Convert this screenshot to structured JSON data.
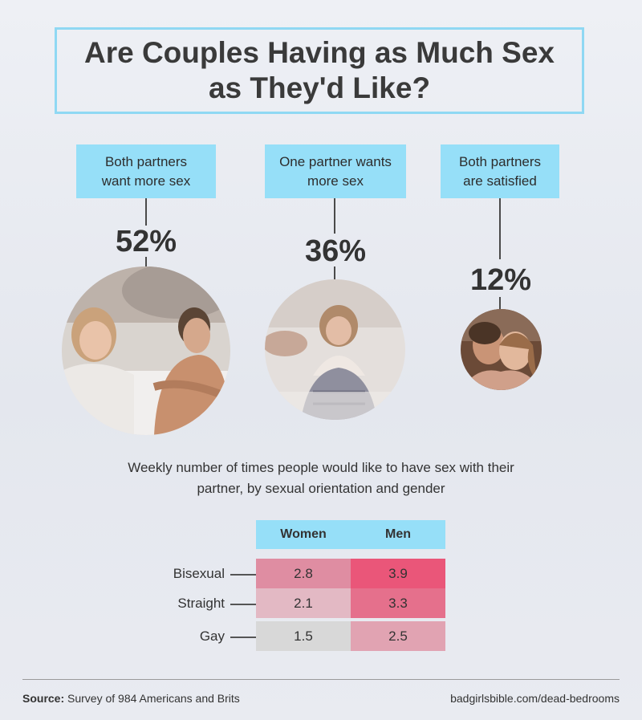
{
  "title": "Are Couples Having as Much Sex\nas They'd Like?",
  "chart_data": [
    {
      "type": "bubble",
      "categories": [
        "Both partners\nwant more sex",
        "One partner wants\nmore sex",
        "Both partners\nare satisfied"
      ],
      "values": [
        52,
        36,
        12
      ],
      "labels": [
        "52%",
        "36%",
        "12%"
      ],
      "images": [
        "couple-turned-away-photo",
        "sad-woman-in-bed-photo",
        "happy-couple-photo"
      ]
    },
    {
      "type": "table",
      "title": "Weekly number of times people would like to have sex with their\npartner, by sexual orientation and gender",
      "columns": [
        "Women",
        "Men"
      ],
      "rows": [
        "Bisexual",
        "Straight",
        "Gay"
      ],
      "values": [
        [
          2.8,
          3.9
        ],
        [
          2.1,
          3.3
        ],
        [
          1.5,
          2.5
        ]
      ],
      "cell_labels": [
        [
          "2.8",
          "3.9"
        ],
        [
          "2.1",
          "3.3"
        ],
        [
          "1.5",
          "2.5"
        ]
      ],
      "cell_colors": [
        [
          "#df8da2",
          "#ea5679"
        ],
        [
          "#e3b9c4",
          "#e5708c"
        ],
        [
          "#d8d8d8",
          "#e1a3b2"
        ]
      ]
    }
  ],
  "footer": {
    "source_label": "Source:",
    "source_text": " Survey of 984 Americans and Brits",
    "url": "badgirlsbible.com/dead-bedrooms"
  },
  "colors": {
    "label_bg": "#96dff8",
    "title_border": "#8fd8f3"
  }
}
